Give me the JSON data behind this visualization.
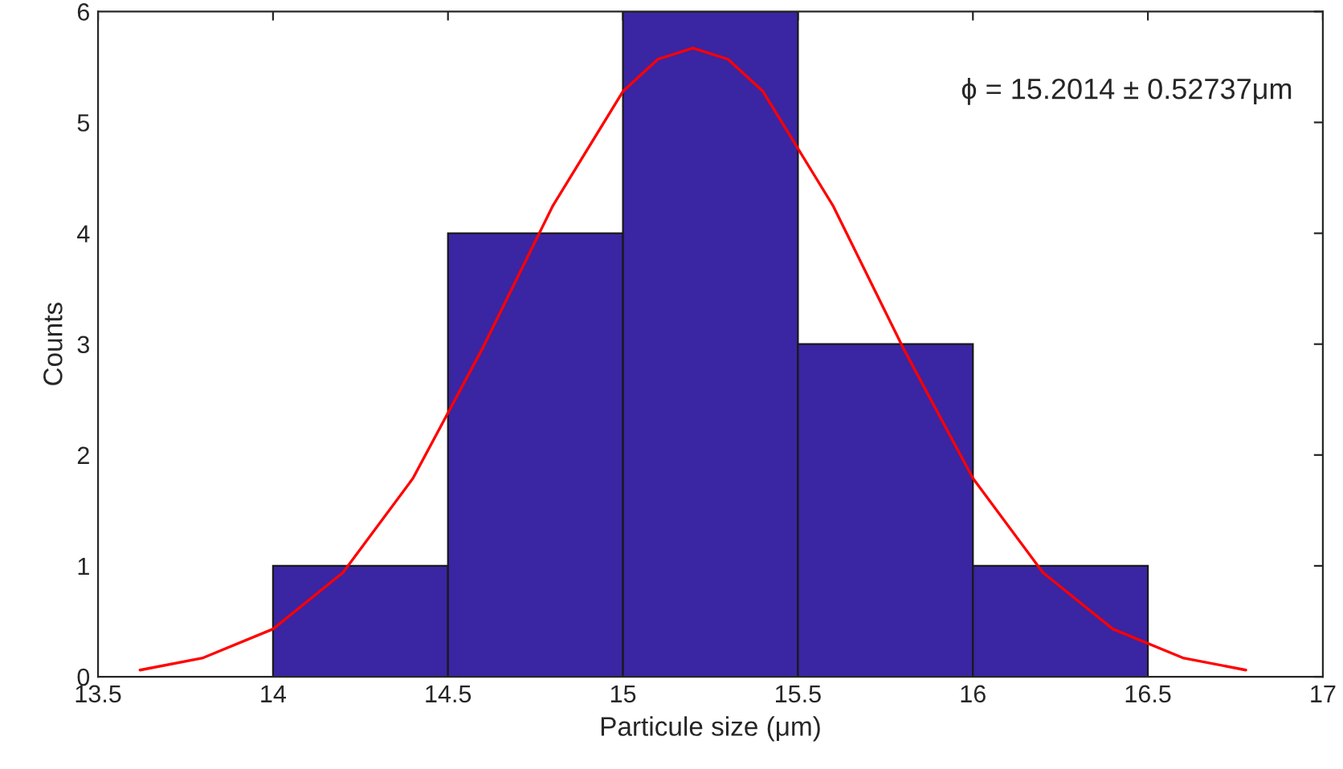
{
  "chart_data": {
    "type": "histogram",
    "xlabel": "Particule size (μm)",
    "ylabel": "Counts",
    "annotations": [
      "ϕ = 15.2014 ± 0.52737μm"
    ],
    "series": [
      {
        "bins": [
          14,
          14.5,
          15,
          15.5,
          16,
          16.5
        ],
        "values": [
          1,
          4,
          6,
          3,
          1
        ],
        "color": "#3a25a3"
      },
      {
        "type": "line",
        "color": "#ff0000",
        "x": [
          13.62,
          13.8,
          14.0,
          14.2,
          14.4,
          14.6,
          14.8,
          15.0,
          15.1,
          15.2,
          15.3,
          15.4,
          15.6,
          15.8,
          16.0,
          16.2,
          16.4,
          16.6,
          16.78
        ],
        "values": [
          0.06,
          0.17,
          0.43,
          0.94,
          1.79,
          2.97,
          4.25,
          5.28,
          5.57,
          5.67,
          5.57,
          5.28,
          4.25,
          2.97,
          1.79,
          0.94,
          0.43,
          0.17,
          0.06
        ]
      }
    ],
    "xlim": [
      13.5,
      17
    ],
    "xticks": [
      13.5,
      14,
      14.5,
      15,
      15.5,
      16,
      16.5,
      17
    ],
    "ylim": [
      0,
      6
    ],
    "yticks": [
      0,
      1,
      2,
      3,
      4,
      5,
      6
    ],
    "grid": false
  }
}
